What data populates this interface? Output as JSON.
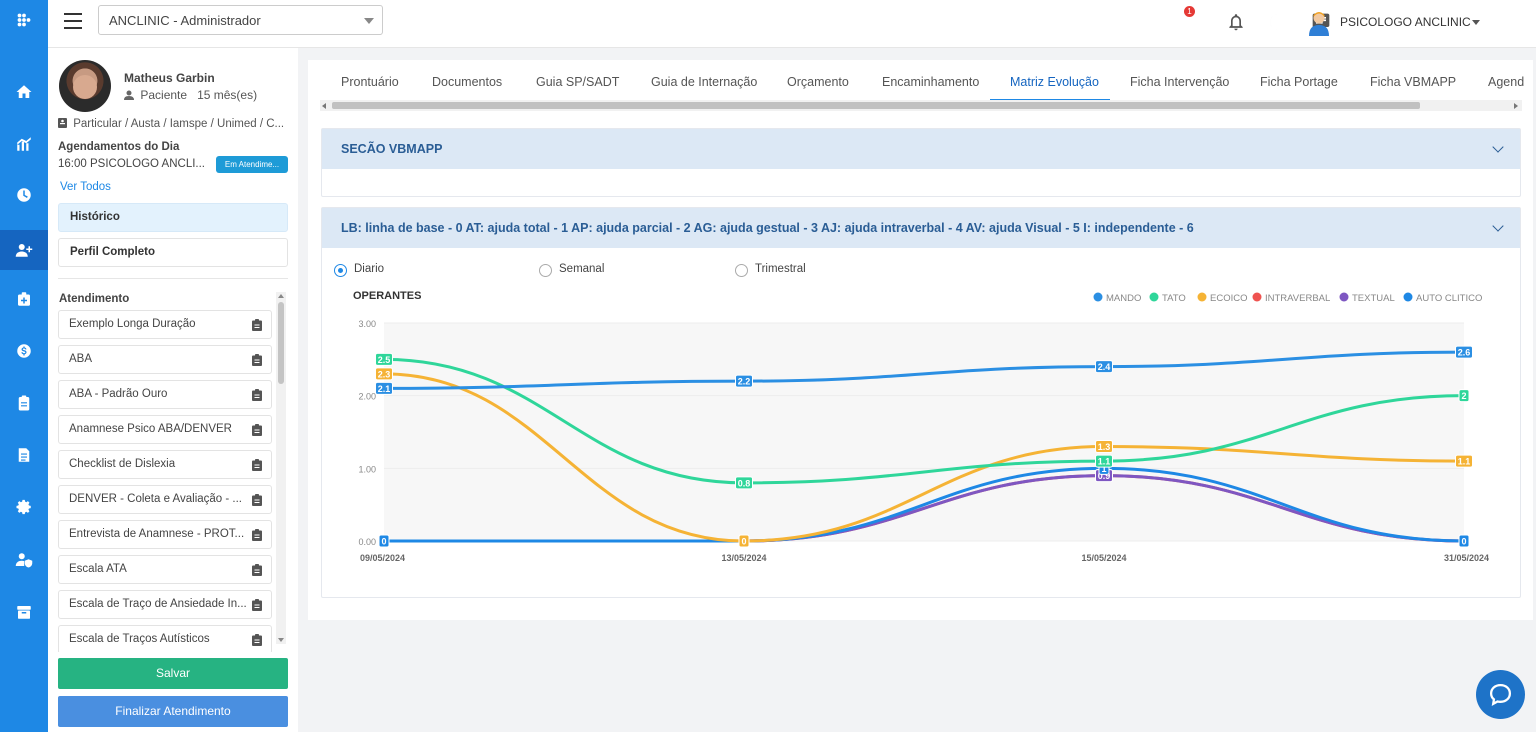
{
  "app": {
    "context_select": "ANCLINIC - Administrador",
    "notification_count": "1",
    "user_name": "PSICOLOGO ANCLINIC"
  },
  "rail_icons": [
    "apps-icon",
    "home-icon",
    "analytics-icon",
    "clock-icon",
    "add-user-icon",
    "medical-kit-icon",
    "money-icon",
    "clipboard-icon",
    "document-icon",
    "settings-icon",
    "user-shield-icon",
    "box-icon"
  ],
  "patient": {
    "name": "Matheus Garbin",
    "type": "Paciente",
    "age": "15 mês(es)",
    "convenios": "Particular / Austa / Iamspe / Unimed / C...",
    "agenda_title": "Agendamentos do Dia",
    "agenda_item": "16:00 PSICOLOGO ANCLI...",
    "agenda_status": "Em Atendime...",
    "ver_todos": "Ver Todos",
    "historico": "Histórico",
    "perfil": "Perfil Completo",
    "atendimento_title": "Atendimento",
    "atendimentos": [
      "Exemplo Longa Duração",
      "ABA",
      "ABA - Padrão Ouro",
      "Anamnese Psico ABA/DENVER",
      "Checklist de Dislexia",
      "DENVER - Coleta e Avaliação - ...",
      "Entrevista de Anamnese - PROT...",
      "Escala ATA",
      "Escala de Traço de Ansiedade In...",
      "Escala de Traços Autísticos"
    ],
    "salvar": "Salvar",
    "finalizar": "Finalizar Atendimento"
  },
  "tabs": [
    "Prontuário",
    "Documentos",
    "Guia SP/SADT",
    "Guia de Internação",
    "Orçamento",
    "Encaminhamento",
    "Matriz Evolução",
    "Ficha Intervenção",
    "Ficha Portage",
    "Ficha VBMAPP",
    "Agend"
  ],
  "active_tab": "Matriz Evolução",
  "section1_title": "SECÃO VBMAPP",
  "section2_title": "LB: linha de base - 0 AT: ajuda total - 1 AP: ajuda parcial - 2 AG: ajuda gestual - 3 AJ: ajuda intraverbal - 4 AV: ajuda Visual - 5 I: independente - 6",
  "period_options": [
    "Diario",
    "Semanal",
    "Trimestral"
  ],
  "period_selected": "Diario",
  "chart_data": {
    "type": "line",
    "title": "OPERANTES",
    "categories": [
      "09/05/2024",
      "13/05/2024",
      "15/05/2024",
      "31/05/2024"
    ],
    "y_ticks": [
      "3.00",
      "2.00",
      "1.00",
      "0.00"
    ],
    "ylim": [
      0,
      3
    ],
    "legend_position": "top-right",
    "series": [
      {
        "name": "MANDO",
        "color": "#2b8fe3",
        "values": [
          2.1,
          2.2,
          2.4,
          2.6
        ],
        "labels": [
          "2.1",
          "2.2",
          "2.4",
          "2.6"
        ]
      },
      {
        "name": "TATO",
        "color": "#2fd69a",
        "values": [
          2.5,
          0.8,
          1.1,
          2
        ],
        "labels": [
          "2.5",
          "0.8",
          "1.1",
          "2"
        ]
      },
      {
        "name": "ECOICO",
        "color": "#f5b335",
        "values": [
          2.3,
          0,
          1.3,
          1.1
        ],
        "labels": [
          "2.3",
          "0",
          "1.3",
          "1.1"
        ]
      },
      {
        "name": "INTRAVERBAL",
        "color": "#ef5350",
        "values": [
          0,
          0,
          0.9,
          0
        ],
        "labels": [
          "0",
          "0",
          "0.9",
          "0"
        ]
      },
      {
        "name": "TEXTUAL",
        "color": "#7e57c2",
        "values": [
          0,
          0,
          0.9,
          0
        ],
        "labels": [
          "0",
          "0",
          "0.9",
          "0"
        ]
      },
      {
        "name": "AUTO CLITICO",
        "color": "#1e88e5",
        "values": [
          0,
          0,
          1,
          0
        ],
        "labels": [
          "0",
          "0",
          "1",
          "0"
        ]
      }
    ]
  }
}
